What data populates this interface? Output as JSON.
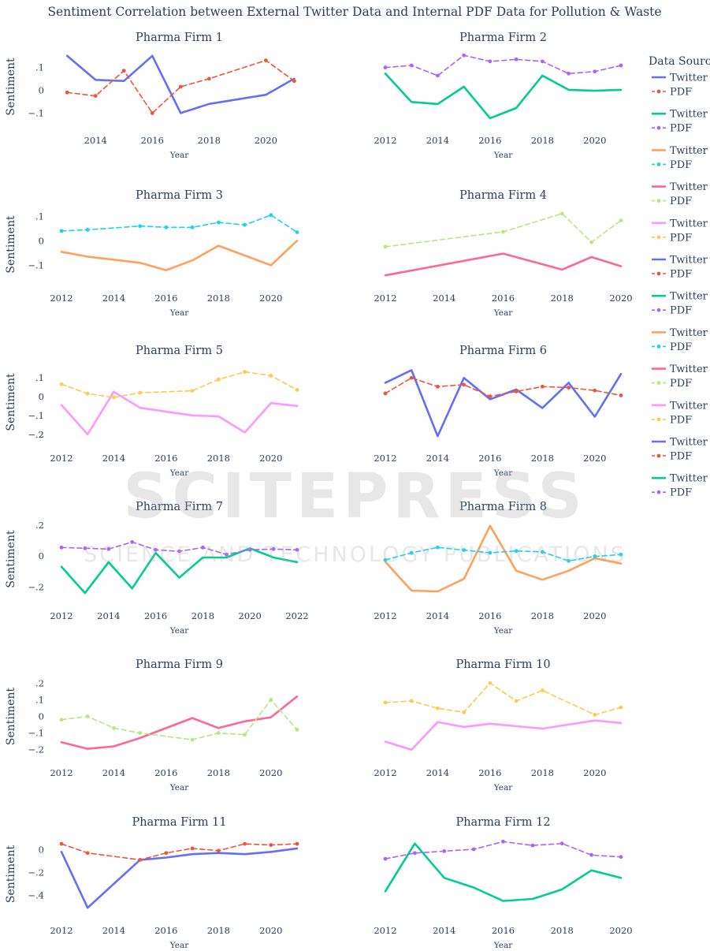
{
  "chart_data": {
    "type": "line",
    "title": "Sentiment Correlation between External Twitter Data and Internal PDF Data for Pollution & Waste",
    "legend_title": "Data Sourc",
    "legend_placement": "right",
    "colors": [
      "#636efa",
      "#00cc96",
      "#ffa15a",
      "#ff6692",
      "#ff97ff"
    ],
    "pdf_colors": [
      "#ef553b",
      "#ab63fa",
      "#19d3f3",
      "#b6e880",
      "#fecb52"
    ],
    "legend_entries": [
      {
        "twitter": "Twitter",
        "pdf": "PDF"
      },
      {
        "twitter": "Twitter",
        "pdf": "PDF"
      },
      {
        "twitter": "Twitter",
        "pdf": "PDF"
      },
      {
        "twitter": "Twitter",
        "pdf": "PDF"
      },
      {
        "twitter": "Twitter",
        "pdf": "PDF"
      },
      {
        "twitter": "Twitter",
        "pdf": "PDF"
      },
      {
        "twitter": "Twitter",
        "pdf": "PDF"
      },
      {
        "twitter": "Twitter",
        "pdf": "PDF"
      },
      {
        "twitter": "Twitter",
        "pdf": "PDF"
      },
      {
        "twitter": "Twitter",
        "pdf": "PDF"
      },
      {
        "twitter": "Twitter",
        "pdf": "PDF"
      },
      {
        "twitter": "Twitter",
        "pdf": "PDF"
      }
    ],
    "subplots": [
      {
        "title": "Pharma Firm 1",
        "xlabel": "Year",
        "ylabel": "Sentiment",
        "xlim": [
          2012.8,
          2021.1
        ],
        "ylim": [
          -0.14,
          0.17
        ],
        "xticks": [
          2014,
          2016,
          2018,
          2020
        ],
        "yticks": [
          -0.1,
          0,
          0.1
        ],
        "series": [
          {
            "name": "Twitter",
            "x": [
              2013,
              2014,
              2015,
              2016,
              2017,
              2018,
              2020,
              2021
            ],
            "y": [
              0.15,
              0.045,
              0.04,
              0.15,
              -0.1,
              -0.06,
              -0.02,
              0.05
            ]
          },
          {
            "name": "PDF",
            "x": [
              2013,
              2014,
              2015,
              2016,
              2017,
              2018,
              2020,
              2021
            ],
            "y": [
              -0.01,
              -0.025,
              0.085,
              -0.1,
              0.015,
              0.05,
              0.13,
              0.04
            ]
          }
        ]
      },
      {
        "title": "Pharma Firm 2",
        "xlabel": "Year",
        "ylabel": "",
        "xlim": [
          2012,
          2021
        ],
        "ylim": [
          -0.2,
          0.15
        ],
        "xticks": [
          2012,
          2014,
          2016,
          2018,
          2020
        ],
        "yticks": [],
        "series": [
          {
            "name": "Twitter",
            "x": [
              2012,
              2013,
              2014,
              2015,
              2016,
              2017,
              2018,
              2019,
              2020,
              2021
            ],
            "y": [
              0.04,
              -0.1,
              -0.11,
              -0.025,
              -0.18,
              -0.13,
              0.03,
              -0.04,
              -0.045,
              -0.04
            ]
          },
          {
            "name": "PDF",
            "x": [
              2012,
              2013,
              2014,
              2015,
              2016,
              2017,
              2018,
              2019,
              2020,
              2021
            ],
            "y": [
              0.07,
              0.08,
              0.03,
              0.13,
              0.1,
              0.11,
              0.1,
              0.04,
              0.05,
              0.08
            ]
          }
        ]
      },
      {
        "title": "Pharma Firm 3",
        "xlabel": "Year",
        "ylabel": "Sentiment",
        "xlim": [
          2012,
          2021
        ],
        "ylim": [
          -0.16,
          0.13
        ],
        "xticks": [
          2012,
          2014,
          2016,
          2018,
          2020
        ],
        "yticks": [
          -0.1,
          0,
          0.1
        ],
        "series": [
          {
            "name": "Twitter",
            "x": [
              2012,
              2013,
              2015,
              2016,
              2017,
              2018,
              2020,
              2021
            ],
            "y": [
              -0.045,
              -0.065,
              -0.09,
              -0.12,
              -0.08,
              -0.02,
              -0.1,
              0
            ]
          },
          {
            "name": "PDF",
            "x": [
              2012,
              2013,
              2015,
              2016,
              2017,
              2018,
              2019,
              2020,
              2021
            ],
            "y": [
              0.04,
              0.045,
              0.06,
              0.055,
              0.055,
              0.075,
              0.065,
              0.105,
              0.035
            ]
          }
        ]
      },
      {
        "title": "Pharma Firm 4",
        "xlabel": "Year",
        "ylabel": "",
        "xlim": [
          2012,
          2020
        ],
        "ylim": [
          -0.16,
          0.15
        ],
        "xticks": [
          2012,
          2014,
          2016,
          2018,
          2020
        ],
        "yticks": [],
        "series": [
          {
            "name": "Twitter",
            "x": [
              2012,
              2016,
              2018,
              2019,
              2020
            ],
            "y": [
              -0.14,
              -0.045,
              -0.115,
              -0.06,
              -0.1
            ]
          },
          {
            "name": "PDF",
            "x": [
              2012,
              2016,
              2018,
              2019,
              2020
            ],
            "y": [
              -0.015,
              0.05,
              0.13,
              0.005,
              0.1
            ]
          }
        ]
      },
      {
        "title": "Pharma Firm 5",
        "xlabel": "Year",
        "ylabel": "Sentiment",
        "xlim": [
          2012,
          2021
        ],
        "ylim": [
          -0.23,
          0.17
        ],
        "xticks": [
          2012,
          2014,
          2016,
          2018,
          2020
        ],
        "yticks": [
          -0.2,
          -0.1,
          0,
          0.1
        ],
        "series": [
          {
            "name": "Twitter",
            "x": [
              2012,
              2013,
              2014,
              2015,
              2017,
              2018,
              2019,
              2020,
              2021
            ],
            "y": [
              -0.045,
              -0.2,
              0.025,
              -0.06,
              -0.1,
              -0.105,
              -0.19,
              -0.035,
              -0.05
            ]
          },
          {
            "name": "PDF",
            "x": [
              2012,
              2013,
              2014,
              2015,
              2017,
              2018,
              2019,
              2020,
              2021
            ],
            "y": [
              0.065,
              0.015,
              -0.005,
              0.02,
              0.03,
              0.09,
              0.13,
              0.11,
              0.035
            ]
          }
        ]
      },
      {
        "title": "Pharma Firm 6",
        "xlabel": "Year",
        "ylabel": "",
        "xlim": [
          2012,
          2021
        ],
        "ylim": [
          -0.22,
          0.17
        ],
        "xticks": [
          2012,
          2014,
          2016,
          2018,
          2020
        ],
        "yticks": [],
        "series": [
          {
            "name": "Twitter",
            "x": [
              2012,
              2013,
              2014,
              2015,
              2016,
              2017,
              2018,
              2019,
              2020,
              2021
            ],
            "y": [
              0.075,
              0.14,
              -0.2,
              0.1,
              -0.01,
              0.04,
              -0.055,
              0.075,
              -0.1,
              0.12
            ]
          },
          {
            "name": "PDF",
            "x": [
              2012,
              2013,
              2014,
              2015,
              2016,
              2017,
              2018,
              2019,
              2020,
              2021
            ],
            "y": [
              0.02,
              0.1,
              0.055,
              0.065,
              0.005,
              0.03,
              0.055,
              0.05,
              0.035,
              0.01
            ]
          }
        ]
      },
      {
        "title": "Pharma Firm 7",
        "xlabel": "Year",
        "ylabel": "Sentiment",
        "xlim": [
          2012,
          2022
        ],
        "ylim": [
          -0.27,
          0.23
        ],
        "xticks": [
          2012,
          2014,
          2016,
          2018,
          2020,
          2022
        ],
        "yticks": [
          -0.2,
          0,
          0.2
        ],
        "series": [
          {
            "name": "Twitter",
            "x": [
              2012,
              2013,
              2014,
              2015,
              2016,
              2017,
              2018,
              2019,
              2020,
              2021,
              2022
            ],
            "y": [
              -0.07,
              -0.24,
              -0.04,
              -0.21,
              0.02,
              -0.14,
              -0.01,
              -0.01,
              0.05,
              -0.01,
              -0.04
            ]
          },
          {
            "name": "PDF",
            "x": [
              2012,
              2013,
              2014,
              2015,
              2016,
              2017,
              2018,
              2019,
              2020,
              2021,
              2022
            ],
            "y": [
              0.055,
              0.05,
              0.045,
              0.09,
              0.04,
              0.03,
              0.055,
              0.01,
              0.04,
              0.045,
              0.04
            ]
          }
        ]
      },
      {
        "title": "Pharma Firm 8",
        "xlabel": "Year",
        "ylabel": "",
        "xlim": [
          2012,
          2021
        ],
        "ylim": [
          -0.2,
          0.23
        ],
        "xticks": [
          2012,
          2014,
          2016,
          2018,
          2020
        ],
        "yticks": [],
        "series": [
          {
            "name": "Twitter",
            "x": [
              2012,
              2013,
              2014,
              2015,
              2016,
              2017,
              2018,
              2019,
              2020,
              2021
            ],
            "y": [
              0,
              -0.16,
              -0.165,
              -0.095,
              0.2,
              -0.05,
              -0.1,
              -0.05,
              0.02,
              -0.01
            ]
          },
          {
            "name": "PDF",
            "x": [
              2012,
              2013,
              2014,
              2015,
              2016,
              2017,
              2018,
              2019,
              2020,
              2021
            ],
            "y": [
              0.01,
              0.05,
              0.08,
              0.065,
              0.05,
              0.06,
              0.055,
              0.005,
              0.03,
              0.04
            ]
          }
        ]
      },
      {
        "title": "Pharma Firm 9",
        "xlabel": "Year",
        "ylabel": "Sentiment",
        "xlim": [
          2012,
          2021
        ],
        "ylim": [
          -0.23,
          0.23
        ],
        "xticks": [
          2012,
          2014,
          2016,
          2018,
          2020
        ],
        "yticks": [
          -0.2,
          -0.1,
          0,
          0.1,
          0.2
        ],
        "series": [
          {
            "name": "Twitter",
            "x": [
              2012,
              2013,
              2014,
              2015,
              2017,
              2018,
              2019,
              2020,
              2021
            ],
            "y": [
              -0.155,
              -0.195,
              -0.18,
              -0.13,
              -0.01,
              -0.07,
              -0.03,
              -0.005,
              0.12
            ]
          },
          {
            "name": "PDF",
            "x": [
              2012,
              2013,
              2014,
              2015,
              2017,
              2018,
              2019,
              2020,
              2021
            ],
            "y": [
              -0.02,
              0,
              -0.07,
              -0.1,
              -0.14,
              -0.1,
              -0.11,
              0.1,
              -0.08
            ]
          }
        ]
      },
      {
        "title": "Pharma Firm 10",
        "xlabel": "Year",
        "ylabel": "",
        "xlim": [
          2012,
          2021
        ],
        "ylim": [
          -0.22,
          0.25
        ],
        "xticks": [
          2012,
          2014,
          2016,
          2018,
          2020
        ],
        "yticks": [],
        "series": [
          {
            "name": "Twitter",
            "x": [
              2012,
              2013,
              2014,
              2015,
              2016,
              2018,
              2020,
              2021
            ],
            "y": [
              -0.14,
              -0.19,
              -0.02,
              -0.05,
              -0.03,
              -0.06,
              -0.01,
              -0.025
            ]
          },
          {
            "name": "PDF",
            "x": [
              2012,
              2013,
              2014,
              2015,
              2016,
              2017,
              2018,
              2020,
              2021
            ],
            "y": [
              0.1,
              0.11,
              0.065,
              0.04,
              0.22,
              0.11,
              0.175,
              0.025,
              0.07
            ]
          }
        ]
      },
      {
        "title": "Pharma Firm 11",
        "xlabel": "Year",
        "ylabel": "Sentiment",
        "xlim": [
          2012,
          2021
        ],
        "ylim": [
          -0.55,
          0.12
        ],
        "xticks": [
          2012,
          2014,
          2016,
          2018,
          2020
        ],
        "yticks": [
          -0.4,
          -0.2,
          0
        ],
        "series": [
          {
            "name": "Twitter",
            "x": [
              2012,
              2013,
              2015,
              2016,
              2017,
              2018,
              2019,
              2020,
              2021
            ],
            "y": [
              -0.02,
              -0.51,
              -0.09,
              -0.07,
              -0.04,
              -0.03,
              -0.04,
              -0.02,
              0.01
            ]
          },
          {
            "name": "PDF",
            "x": [
              2012,
              2013,
              2015,
              2016,
              2017,
              2018,
              2019,
              2020,
              2021
            ],
            "y": [
              0.05,
              -0.03,
              -0.09,
              -0.03,
              0.01,
              -0.01,
              0.05,
              0.04,
              0.05
            ]
          }
        ]
      },
      {
        "title": "Pharma Firm 12",
        "xlabel": "Year",
        "ylabel": "",
        "xlim": [
          2012,
          2020
        ],
        "ylim": [
          -0.25,
          0.15
        ],
        "xticks": [
          2012,
          2014,
          2016,
          2018,
          2020
        ],
        "yticks": [],
        "series": [
          {
            "name": "Twitter",
            "x": [
              2012,
              2013,
              2014,
              2015,
              2016,
              2017,
              2018,
              2019,
              2020
            ],
            "y": [
              -0.14,
              0.11,
              -0.07,
              -0.12,
              -0.19,
              -0.18,
              -0.13,
              -0.03,
              -0.07
            ]
          },
          {
            "name": "PDF",
            "x": [
              2012,
              2013,
              2014,
              2015,
              2016,
              2017,
              2018,
              2019,
              2020
            ],
            "y": [
              0.03,
              0.06,
              0.07,
              0.08,
              0.12,
              0.1,
              0.11,
              0.05,
              0.04
            ]
          }
        ]
      }
    ]
  },
  "watermark": {
    "main": "SCITEPRESS",
    "sub": "SCIENCE AND TECHNOLOGY PUBLICATIONS"
  }
}
